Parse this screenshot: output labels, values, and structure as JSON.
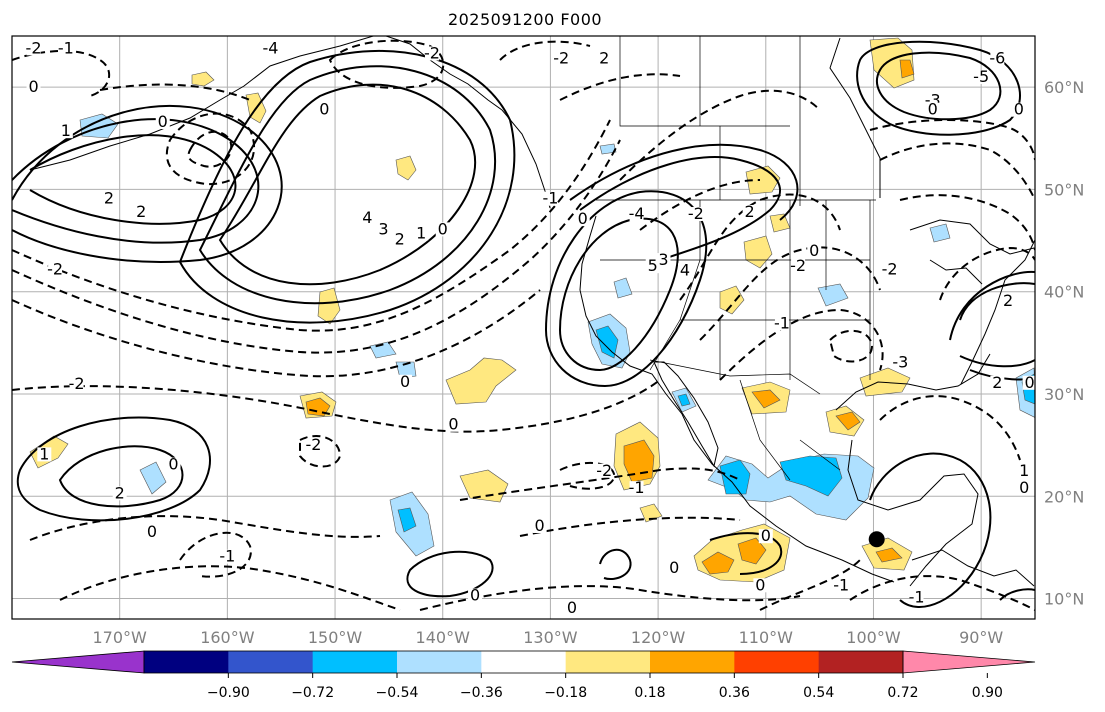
{
  "title": "2025091200 F000",
  "map": {
    "projection": "plate-carree",
    "lon_range": [
      -180,
      -85
    ],
    "lat_range": [
      8,
      65
    ],
    "gridlines": true,
    "marker": {
      "name": "point-marker",
      "lon": -99.7,
      "lat": 15.8,
      "color": "#000000"
    }
  },
  "axes": {
    "x_ticks": [
      {
        "value": -170,
        "label": "170°W"
      },
      {
        "value": -160,
        "label": "160°W"
      },
      {
        "value": -150,
        "label": "150°W"
      },
      {
        "value": -140,
        "label": "140°W"
      },
      {
        "value": -130,
        "label": "130°W"
      },
      {
        "value": -120,
        "label": "120°W"
      },
      {
        "value": -110,
        "label": "110°W"
      },
      {
        "value": -100,
        "label": "100°W"
      },
      {
        "value": -90,
        "label": "90°W"
      }
    ],
    "y_ticks": [
      {
        "value": 60,
        "label": "60°N"
      },
      {
        "value": 50,
        "label": "50°N"
      },
      {
        "value": 40,
        "label": "40°N"
      },
      {
        "value": 30,
        "label": "30°N"
      },
      {
        "value": 20,
        "label": "20°N"
      },
      {
        "value": 10,
        "label": "10°N"
      }
    ]
  },
  "colorbar": {
    "extend": "both",
    "colors": [
      "#9933cc",
      "#000080",
      "#3355cc",
      "#00bfff",
      "#aee0ff",
      "#ffffff",
      "#ffe880",
      "#ffa500",
      "#ff4000",
      "#b22222",
      "#ff88aa"
    ],
    "tick_labels": [
      "−0.90",
      "−0.72",
      "−0.54",
      "−0.36",
      "−0.18",
      "0.18",
      "0.36",
      "0.54",
      "0.72",
      "0.90"
    ]
  },
  "contour_labels": [
    {
      "text": "-2",
      "lon": -178,
      "lat": 63.5
    },
    {
      "text": "-1",
      "lon": -175,
      "lat": 63.5
    },
    {
      "text": "0",
      "lon": -178,
      "lat": 59.7
    },
    {
      "text": "1",
      "lon": -175,
      "lat": 55.4
    },
    {
      "text": "0",
      "lon": -166,
      "lat": 56.3
    },
    {
      "text": "-4",
      "lon": -156,
      "lat": 63.5
    },
    {
      "text": "0",
      "lon": -151,
      "lat": 57.5
    },
    {
      "text": "-2",
      "lon": -141,
      "lat": 63.0
    },
    {
      "text": "-2",
      "lon": -129,
      "lat": 62.5
    },
    {
      "text": "2",
      "lon": -125,
      "lat": 62.5
    },
    {
      "text": "2",
      "lon": -171,
      "lat": 48.8
    },
    {
      "text": "2",
      "lon": -168,
      "lat": 47.5
    },
    {
      "text": "-2",
      "lon": -176,
      "lat": 41.9
    },
    {
      "text": "4",
      "lon": -147,
      "lat": 46.9
    },
    {
      "text": "3",
      "lon": -145.5,
      "lat": 45.8
    },
    {
      "text": "2",
      "lon": -144,
      "lat": 44.8
    },
    {
      "text": "1",
      "lon": -142,
      "lat": 45.4
    },
    {
      "text": "0",
      "lon": -140,
      "lat": 45.8
    },
    {
      "text": "-1",
      "lon": -130,
      "lat": 48.8
    },
    {
      "text": "0",
      "lon": -127,
      "lat": 46.8
    },
    {
      "text": "-4",
      "lon": -122,
      "lat": 47.3
    },
    {
      "text": "3",
      "lon": -119.5,
      "lat": 42.8
    },
    {
      "text": "5",
      "lon": -120.5,
      "lat": 42.2
    },
    {
      "text": "4",
      "lon": -117.5,
      "lat": 41.8
    },
    {
      "text": "-2",
      "lon": -116.5,
      "lat": 47.3
    },
    {
      "text": "2",
      "lon": -111.5,
      "lat": 47.5
    },
    {
      "text": "-2",
      "lon": -107,
      "lat": 42.2
    },
    {
      "text": "0",
      "lon": -105.5,
      "lat": 43.7
    },
    {
      "text": "-1",
      "lon": -108.5,
      "lat": 36.6
    },
    {
      "text": "-2",
      "lon": -98.5,
      "lat": 41.9
    },
    {
      "text": "-3",
      "lon": -97.5,
      "lat": 32.8
    },
    {
      "text": "2",
      "lon": -87.5,
      "lat": 38.8
    },
    {
      "text": "2",
      "lon": -88.5,
      "lat": 30.8
    },
    {
      "text": "0",
      "lon": -85.5,
      "lat": 30.8
    },
    {
      "text": "-6",
      "lon": -88.5,
      "lat": 62.5
    },
    {
      "text": "-5",
      "lon": -90,
      "lat": 60.7
    },
    {
      "text": "-3",
      "lon": -94.5,
      "lat": 58.4
    },
    {
      "text": "0",
      "lon": -94.5,
      "lat": 57.5
    },
    {
      "text": "0",
      "lon": -86.5,
      "lat": 57.5
    },
    {
      "text": "1",
      "lon": -177,
      "lat": 23.8
    },
    {
      "text": "2",
      "lon": -170,
      "lat": 20.0
    },
    {
      "text": "0",
      "lon": -165,
      "lat": 22.8
    },
    {
      "text": "-2",
      "lon": -174,
      "lat": 30.7
    },
    {
      "text": "0",
      "lon": -143.5,
      "lat": 30.9
    },
    {
      "text": "0",
      "lon": -139,
      "lat": 26.7
    },
    {
      "text": "-2",
      "lon": -152,
      "lat": 24.7
    },
    {
      "text": "-1",
      "lon": -160,
      "lat": 13.8
    },
    {
      "text": "0",
      "lon": -167,
      "lat": 16.2
    },
    {
      "text": "-2",
      "lon": -125,
      "lat": 22.2
    },
    {
      "text": "-1",
      "lon": -122,
      "lat": 20.5
    },
    {
      "text": "0",
      "lon": -131,
      "lat": 16.8
    },
    {
      "text": "0",
      "lon": -137,
      "lat": 10.0
    },
    {
      "text": "0",
      "lon": -128,
      "lat": 8.8
    },
    {
      "text": "0",
      "lon": -118.5,
      "lat": 12.7
    },
    {
      "text": "0",
      "lon": -110,
      "lat": 15.8
    },
    {
      "text": "0",
      "lon": -110.5,
      "lat": 11.0
    },
    {
      "text": "-1",
      "lon": -103,
      "lat": 11.0
    },
    {
      "text": "-1",
      "lon": -96,
      "lat": 9.8
    },
    {
      "text": "0",
      "lon": -86,
      "lat": 20.5
    },
    {
      "text": "1",
      "lon": -86,
      "lat": 22.2
    }
  ]
}
